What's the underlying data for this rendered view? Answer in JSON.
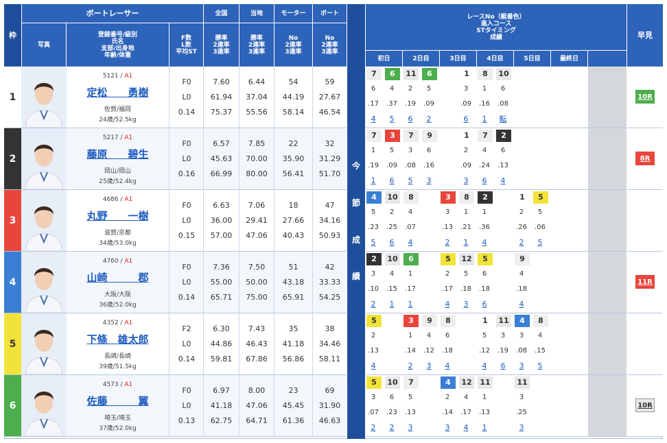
{
  "header": {
    "waku": "枠",
    "boat_racer": "ボートレーサー",
    "photo": "写真",
    "reg": "登録番号/級別",
    "name": "氏名",
    "branch": "支部/出身地",
    "age": "年齢/体重",
    "f_count": "F数",
    "l_count": "L数",
    "avg_st": "平均ST",
    "national": "全国",
    "local": "当地",
    "motor": "モーター",
    "boat": "ボート",
    "win_rate": "勝率",
    "place2": "2連率",
    "place3": "3連率",
    "no": "No",
    "race_no": "レースNo（艇番色）",
    "course": "進入コース",
    "st_timing": "STタイミング",
    "result": "成績",
    "days": [
      "初日",
      "2日目",
      "3日目",
      "4日目",
      "5日目",
      "最終日"
    ],
    "hayami": "早見",
    "konsetsu": [
      "今",
      "節",
      "成",
      "績"
    ]
  },
  "racers": [
    {
      "waku": "1",
      "reg": "5121",
      "cls": "A1",
      "name": "定松　　勇樹",
      "branch": "佐賀/福岡",
      "age": "24歳/52.5kg",
      "f": "F0",
      "l": "L0",
      "st": "0.14",
      "nat": [
        "7.60",
        "61.94",
        "75.37"
      ],
      "loc": [
        "6.44",
        "37.04",
        "55.56"
      ],
      "motor": [
        "54",
        "44.19",
        "58.14"
      ],
      "boat": [
        "59",
        "27.67",
        "46.54"
      ],
      "hayami": "10R",
      "hcolor": "#4cae4c",
      "races": [
        [
          "7",
          "6",
          ".17",
          "4"
        ],
        [
          "6",
          "4",
          ".37",
          "5"
        ],
        [
          "11",
          "2",
          ".19",
          "6"
        ],
        [
          "6",
          "5",
          ".09",
          "2"
        ],
        null,
        [
          "1",
          "3",
          ".09",
          "6"
        ],
        [
          "8",
          "1",
          ".16",
          "1"
        ],
        [
          "10",
          "6",
          ".08",
          "転"
        ],
        null,
        null,
        null,
        null
      ]
    },
    {
      "waku": "2",
      "reg": "5217",
      "cls": "A1",
      "name": "藤原　　碧生",
      "branch": "岡山/岡山",
      "age": "25歳/52.4kg",
      "f": "F0",
      "l": "L0",
      "st": "0.16",
      "nat": [
        "6.57",
        "45.63",
        "66.99"
      ],
      "loc": [
        "7.85",
        "70.00",
        "80.00"
      ],
      "motor": [
        "22",
        "35.90",
        "56.41"
      ],
      "boat": [
        "32",
        "31.29",
        "51.70"
      ],
      "hayami": "8R",
      "hcolor": "#e8453c",
      "races": [
        [
          "7",
          "1",
          ".19",
          "1"
        ],
        [
          "3",
          "5",
          ".09",
          "6"
        ],
        [
          "7",
          "3",
          ".08",
          "5"
        ],
        [
          "9",
          "6",
          ".16",
          "3"
        ],
        null,
        [
          "1",
          "2",
          ".09",
          "3"
        ],
        [
          "7",
          "4",
          ".24",
          "6"
        ],
        [
          "2",
          "6",
          ".13",
          "4"
        ],
        null,
        null,
        null,
        null
      ]
    },
    {
      "waku": "3",
      "reg": "4686",
      "cls": "A1",
      "name": "丸野　　一樹",
      "branch": "滋賀/京都",
      "age": "34歳/53.0kg",
      "f": "F0",
      "l": "L0",
      "st": "0.15",
      "nat": [
        "6.63",
        "36.00",
        "57.00"
      ],
      "loc": [
        "7.06",
        "29.41",
        "47.06"
      ],
      "motor": [
        "18",
        "27.66",
        "40.43"
      ],
      "boat": [
        "47",
        "34.16",
        "50.93"
      ],
      "hayami": "",
      "hcolor": "",
      "races": [
        [
          "4",
          "5",
          ".23",
          "5"
        ],
        [
          "10",
          "2",
          ".25",
          "6"
        ],
        [
          "8",
          "4",
          ".07",
          "4"
        ],
        null,
        [
          "3",
          "3",
          ".13",
          "2"
        ],
        [
          "8",
          "1",
          ".21",
          "1"
        ],
        [
          "2",
          "1",
          ".36",
          "4"
        ],
        null,
        [
          "1",
          "2",
          ".26",
          "2"
        ],
        [
          "5",
          "5",
          ".06",
          "5"
        ],
        null,
        null
      ]
    },
    {
      "waku": "4",
      "reg": "4760",
      "cls": "A1",
      "name": "山崎　　　郡",
      "branch": "大阪/大阪",
      "age": "36歳/52.0kg",
      "f": "F0",
      "l": "L0",
      "st": "0.14",
      "nat": [
        "7.36",
        "55.00",
        "65.71"
      ],
      "loc": [
        "7.50",
        "50.00",
        "75.00"
      ],
      "motor": [
        "51",
        "43.18",
        "65.91"
      ],
      "boat": [
        "42",
        "33.33",
        "54.25"
      ],
      "hayami": "11R",
      "hcolor": "#e8453c",
      "races": [
        [
          "2",
          "3",
          ".10",
          "2"
        ],
        [
          "10",
          "4",
          ".15",
          "1"
        ],
        [
          "6",
          "1",
          ".17",
          "1"
        ],
        null,
        [
          "5",
          "2",
          ".17",
          "4"
        ],
        [
          "12",
          "5",
          ".18",
          "3"
        ],
        [
          "5",
          "6",
          ".18",
          "6"
        ],
        null,
        [
          "9",
          "4",
          ".18",
          "4"
        ],
        null,
        null,
        null
      ]
    },
    {
      "waku": "5",
      "reg": "4352",
      "cls": "A1",
      "name": "下條　雄太郎",
      "branch": "長崎/長崎",
      "age": "39歳/51.5kg",
      "f": "F2",
      "l": "L0",
      "st": "0.14",
      "nat": [
        "6.30",
        "44.86",
        "59.81"
      ],
      "loc": [
        "7.43",
        "46.43",
        "67.86"
      ],
      "motor": [
        "35",
        "41.18",
        "56.86"
      ],
      "boat": [
        "38",
        "34.46",
        "58.11"
      ],
      "hayami": "",
      "hcolor": "",
      "races": [
        [
          "5",
          "2",
          ".13",
          "4"
        ],
        null,
        [
          "3",
          "1",
          ".14",
          "2"
        ],
        [
          "9",
          "4",
          ".12",
          "3"
        ],
        [
          "8",
          "6",
          ".18",
          "4"
        ],
        null,
        [
          "1",
          "5",
          ".12",
          "4"
        ],
        [
          "11",
          "3",
          ".19",
          "6"
        ],
        [
          "4",
          "3",
          ".08",
          "3"
        ],
        [
          "8",
          "4",
          ".15",
          "5"
        ],
        null,
        null
      ]
    },
    {
      "waku": "6",
      "reg": "4573",
      "cls": "A1",
      "name": "佐藤　　　翼",
      "branch": "埼玉/埼玉",
      "age": "37歳/52.0kg",
      "f": "F0",
      "l": "L0",
      "st": "0.13",
      "nat": [
        "6.97",
        "41.18",
        "62.75"
      ],
      "loc": [
        "8.00",
        "47.06",
        "64.71"
      ],
      "motor": [
        "23",
        "45.45",
        "61.36"
      ],
      "boat": [
        "69",
        "31.90",
        "46.63"
      ],
      "hayami": "10R",
      "hcolor": "#e8e8e8",
      "races": [
        [
          "5",
          "3",
          ".07",
          "2"
        ],
        [
          "10",
          "6",
          ".23",
          "2"
        ],
        [
          "7",
          "5",
          ".13",
          "3"
        ],
        null,
        [
          "4",
          "2",
          ".14",
          "3"
        ],
        [
          "12",
          "4",
          ".17",
          "4"
        ],
        [
          "11",
          "1",
          ".13",
          "1"
        ],
        null,
        [
          "11",
          "3",
          ".25",
          "3"
        ],
        null,
        null,
        null
      ]
    }
  ],
  "colors": {
    "1": "#ffffff",
    "2": "#333333",
    "3": "#e8453c",
    "4": "#3a7fd5",
    "5": "#f2e33a",
    "6": "#4cae4c",
    "header": "#2d63b8"
  }
}
